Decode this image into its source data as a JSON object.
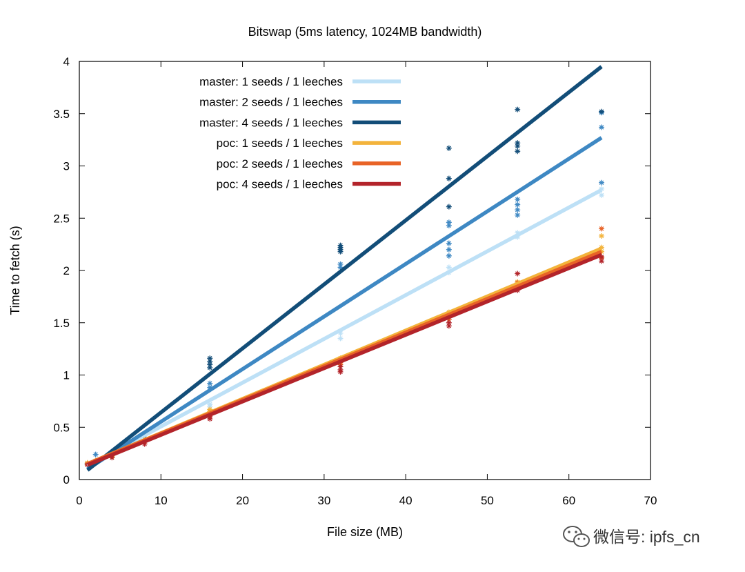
{
  "chart_data": {
    "type": "line",
    "title": "Bitswap (5ms latency, 1024MB bandwidth)",
    "xlabel": "File size (MB)",
    "ylabel": "Time to fetch (s)",
    "xlim": [
      0,
      70
    ],
    "ylim": [
      0,
      4
    ],
    "x_ticks": [
      "0",
      "10",
      "20",
      "30",
      "40",
      "50",
      "60",
      "70"
    ],
    "y_ticks": [
      "0",
      "0.5",
      "1",
      "1.5",
      "2",
      "2.5",
      "3",
      "3.5",
      "4"
    ],
    "grid": false,
    "legend_position": "top-left",
    "series": [
      {
        "name": "master: 1 seeds / 1 leeches",
        "color": "#bde0f6",
        "fit": [
          [
            1,
            0.13
          ],
          [
            64,
            2.77
          ]
        ],
        "points": [
          [
            1,
            0.15
          ],
          [
            2,
            0.17
          ],
          [
            4,
            0.22
          ],
          [
            8,
            0.38
          ],
          [
            16,
            0.72
          ],
          [
            16,
            0.7
          ],
          [
            32,
            1.35
          ],
          [
            32,
            1.4
          ],
          [
            45.3,
            1.98
          ],
          [
            45.3,
            2.03
          ],
          [
            53.7,
            2.32
          ],
          [
            53.7,
            2.36
          ],
          [
            64,
            2.72
          ],
          [
            64,
            2.78
          ]
        ]
      },
      {
        "name": "master: 2 seeds / 1 leeches",
        "color": "#3e88c3",
        "fit": [
          [
            1,
            0.1
          ],
          [
            64,
            3.27
          ]
        ],
        "points": [
          [
            1,
            0.15
          ],
          [
            2,
            0.24
          ],
          [
            4,
            0.26
          ],
          [
            8,
            0.4
          ],
          [
            16,
            0.88
          ],
          [
            16,
            0.92
          ],
          [
            32,
            2.03
          ],
          [
            32,
            2.06
          ],
          [
            45.3,
            2.14
          ],
          [
            45.3,
            2.2
          ],
          [
            45.3,
            2.26
          ],
          [
            45.3,
            2.43
          ],
          [
            45.3,
            2.46
          ],
          [
            53.7,
            2.53
          ],
          [
            53.7,
            2.58
          ],
          [
            53.7,
            2.63
          ],
          [
            53.7,
            2.68
          ],
          [
            64,
            2.84
          ],
          [
            64,
            3.37
          ],
          [
            64,
            3.51
          ]
        ]
      },
      {
        "name": "master: 4 seeds / 1 leeches",
        "color": "#124d78",
        "fit": [
          [
            1,
            0.09
          ],
          [
            64,
            3.95
          ]
        ],
        "points": [
          [
            1,
            0.15
          ],
          [
            2,
            0.18
          ],
          [
            4,
            0.25
          ],
          [
            8,
            0.4
          ],
          [
            16,
            1.07
          ],
          [
            16,
            1.1
          ],
          [
            16,
            1.13
          ],
          [
            16,
            1.16
          ],
          [
            32,
            2.18
          ],
          [
            32,
            2.2
          ],
          [
            32,
            2.22
          ],
          [
            32,
            2.24
          ],
          [
            45.3,
            2.61
          ],
          [
            45.3,
            2.88
          ],
          [
            45.3,
            3.17
          ],
          [
            53.7,
            3.14
          ],
          [
            53.7,
            3.19
          ],
          [
            53.7,
            3.22
          ],
          [
            53.7,
            3.54
          ],
          [
            64,
            3.52
          ]
        ]
      },
      {
        "name": "poc: 1 seeds / 1 leeches",
        "color": "#f3b33b",
        "fit": [
          [
            1,
            0.15
          ],
          [
            64,
            2.21
          ]
        ],
        "points": [
          [
            1,
            0.16
          ],
          [
            2,
            0.18
          ],
          [
            4,
            0.22
          ],
          [
            8,
            0.38
          ],
          [
            16,
            0.65
          ],
          [
            16,
            0.67
          ],
          [
            32,
            1.13
          ],
          [
            32,
            1.16
          ],
          [
            45.3,
            1.57
          ],
          [
            45.3,
            1.6
          ],
          [
            53.7,
            1.86
          ],
          [
            53.7,
            1.89
          ],
          [
            64,
            2.18
          ],
          [
            64,
            2.22
          ],
          [
            64,
            2.33
          ]
        ]
      },
      {
        "name": "poc: 2 seeds / 1 leeches",
        "color": "#e86327",
        "fit": [
          [
            1,
            0.15
          ],
          [
            64,
            2.18
          ]
        ],
        "points": [
          [
            1,
            0.15
          ],
          [
            2,
            0.17
          ],
          [
            4,
            0.23
          ],
          [
            8,
            0.36
          ],
          [
            16,
            0.62
          ],
          [
            16,
            0.64
          ],
          [
            32,
            1.1
          ],
          [
            32,
            1.12
          ],
          [
            45.3,
            1.53
          ],
          [
            45.3,
            1.56
          ],
          [
            53.7,
            1.84
          ],
          [
            53.7,
            1.88
          ],
          [
            64,
            2.12
          ],
          [
            64,
            2.4
          ]
        ]
      },
      {
        "name": "poc: 4 seeds / 1 leeches",
        "color": "#b3242a",
        "fit": [
          [
            1,
            0.14
          ],
          [
            64,
            2.15
          ]
        ],
        "points": [
          [
            1,
            0.14
          ],
          [
            2,
            0.16
          ],
          [
            4,
            0.21
          ],
          [
            8,
            0.34
          ],
          [
            16,
            0.58
          ],
          [
            16,
            0.6
          ],
          [
            32,
            1.03
          ],
          [
            32,
            1.05
          ],
          [
            32,
            1.08
          ],
          [
            45.3,
            1.47
          ],
          [
            45.3,
            1.5
          ],
          [
            53.7,
            1.81
          ],
          [
            53.7,
            1.84
          ],
          [
            53.7,
            1.97
          ],
          [
            64,
            2.09
          ],
          [
            64,
            2.13
          ]
        ]
      }
    ]
  },
  "watermark": {
    "text": "微信号: ipfs_cn",
    "icon": "wechat-icon"
  }
}
